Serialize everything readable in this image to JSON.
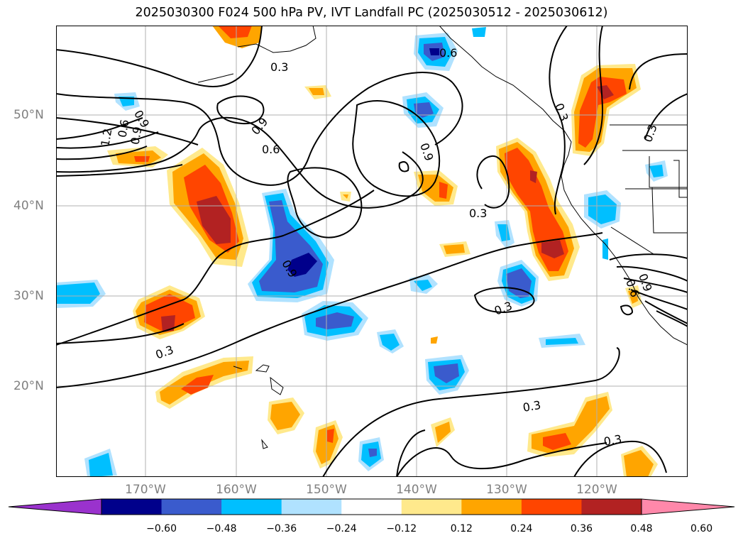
{
  "title": "2025030300 F024 500 hPa PV, IVT Landfall PC (2025030512 - 2025030612)",
  "lat_labels": [
    "50°N",
    "40°N",
    "30°N",
    "20°N"
  ],
  "lon_labels": [
    "170°W",
    "160°W",
    "150°W",
    "140°W",
    "130°W",
    "120°W"
  ],
  "colorbar": {
    "ticks": [
      "−0.60",
      "−0.48",
      "−0.36",
      "−0.24",
      "−0.12",
      "0.12",
      "0.24",
      "0.36",
      "0.48",
      "0.60"
    ],
    "colors": [
      "#9a32cd",
      "#00008b",
      "#3a5bcd",
      "#00bfff",
      "#b0e2ff",
      "#ffffff",
      "#ffe98c",
      "#ffa500",
      "#ff4500",
      "#b22222",
      "#ff88aa"
    ]
  },
  "contour_labels": [
    "0.3",
    "0.9",
    "0.6",
    "1.2",
    "0.9",
    "0.6",
    "0.9",
    "0.9",
    "0.6",
    "0.3",
    "0.3",
    "0.3",
    "0.3",
    "0.3",
    "0.9",
    "0.3",
    "0.3",
    "0.6",
    "0.9"
  ]
}
